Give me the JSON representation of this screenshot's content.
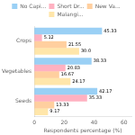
{
  "chart_data": {
    "type": "bar",
    "orientation": "horizontal",
    "categories": [
      "Crops",
      "Vegetables",
      "Seeds"
    ],
    "series": [
      {
        "name": "No Capi...",
        "values": [
          45.33,
          38.33,
          42.17
        ],
        "value_labels": [
          "45.33",
          "38.33",
          "42.17"
        ]
      },
      {
        "name": "Short Dr...",
        "values": [
          5.12,
          20.83,
          35.33
        ],
        "value_labels": [
          "5.12",
          "20.83",
          "35.33"
        ]
      },
      {
        "name": "New Va...",
        "values": [
          21.55,
          16.67,
          13.33
        ],
        "value_labels": [
          "21.55",
          "16.67",
          "13.33"
        ]
      },
      {
        "name": "Malangi...",
        "values": [
          30.0,
          24.17,
          9.17
        ],
        "value_labels": [
          "30.0",
          "24.17",
          "9.17"
        ]
      }
    ],
    "xlabel": "Respondents percentage (%)",
    "xlim": [
      0,
      65
    ],
    "xticks": [
      0,
      20,
      40,
      60
    ],
    "data_labels": true,
    "legend": "top",
    "grid": false
  }
}
